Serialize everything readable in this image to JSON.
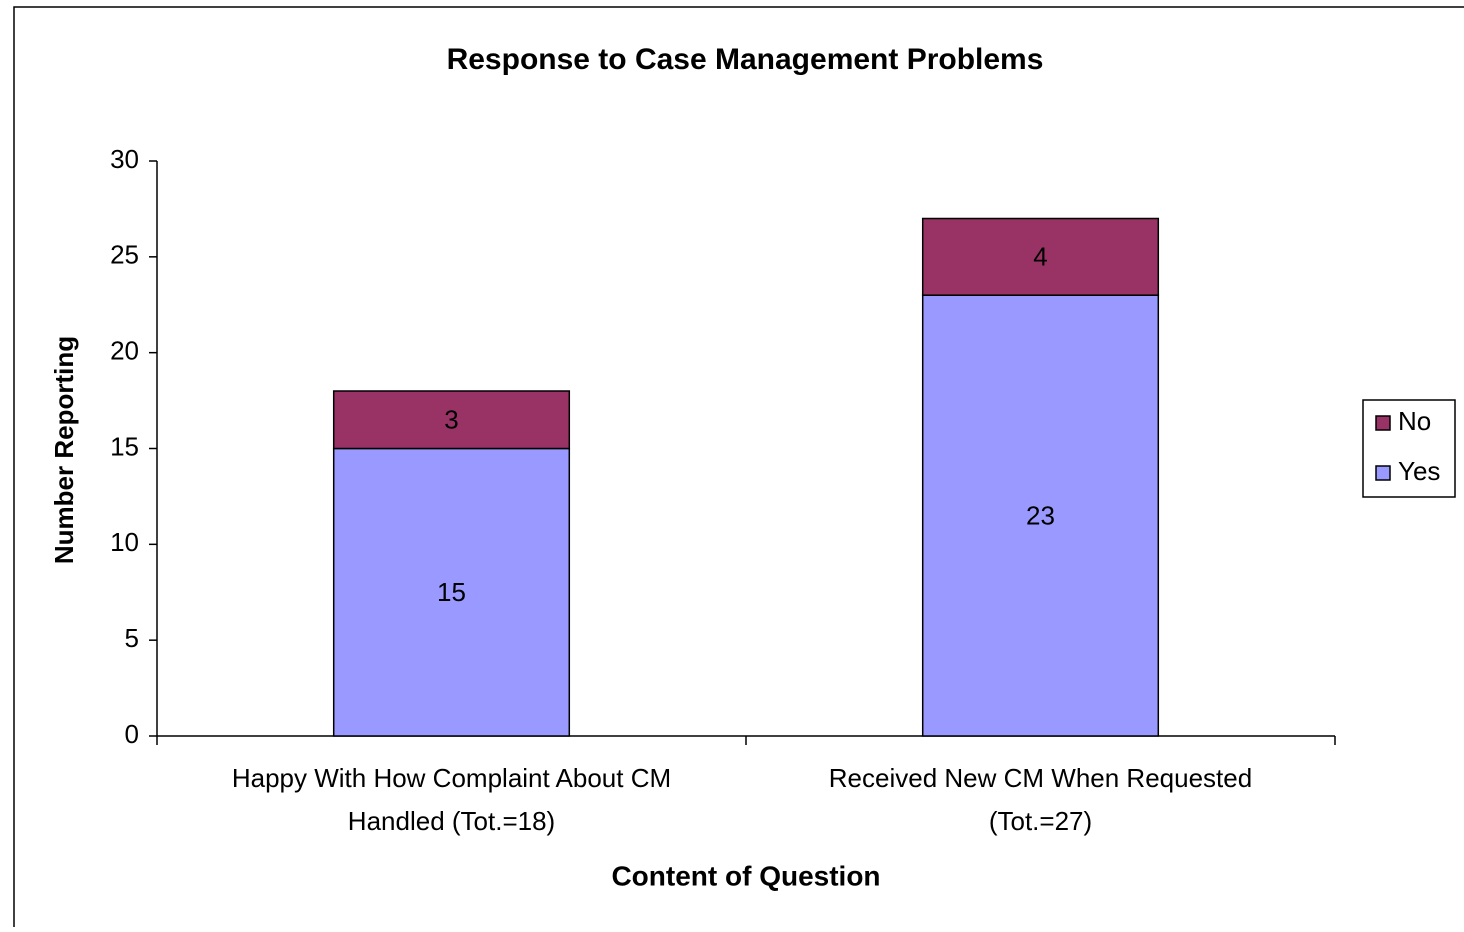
{
  "chart_data": {
    "type": "stacked_bar",
    "title": "Response to Case Management  Problems",
    "x_label": "Content of Question",
    "y_label": "Number Reporting",
    "categories": [
      [
        "Happy With  How Complaint About CM",
        "Handled (Tot.=18)"
      ],
      [
        "Received New CM When Requested",
        "(Tot.=27)"
      ]
    ],
    "series": [
      {
        "name": "Yes",
        "color": "#9999ff",
        "values": [
          15,
          23
        ]
      },
      {
        "name": "No",
        "color": "#993366",
        "values": [
          3,
          4
        ]
      }
    ],
    "ylim": [
      0,
      30
    ],
    "yticks": [
      0,
      5,
      10,
      15,
      20,
      25,
      30
    ],
    "legend": "right"
  }
}
